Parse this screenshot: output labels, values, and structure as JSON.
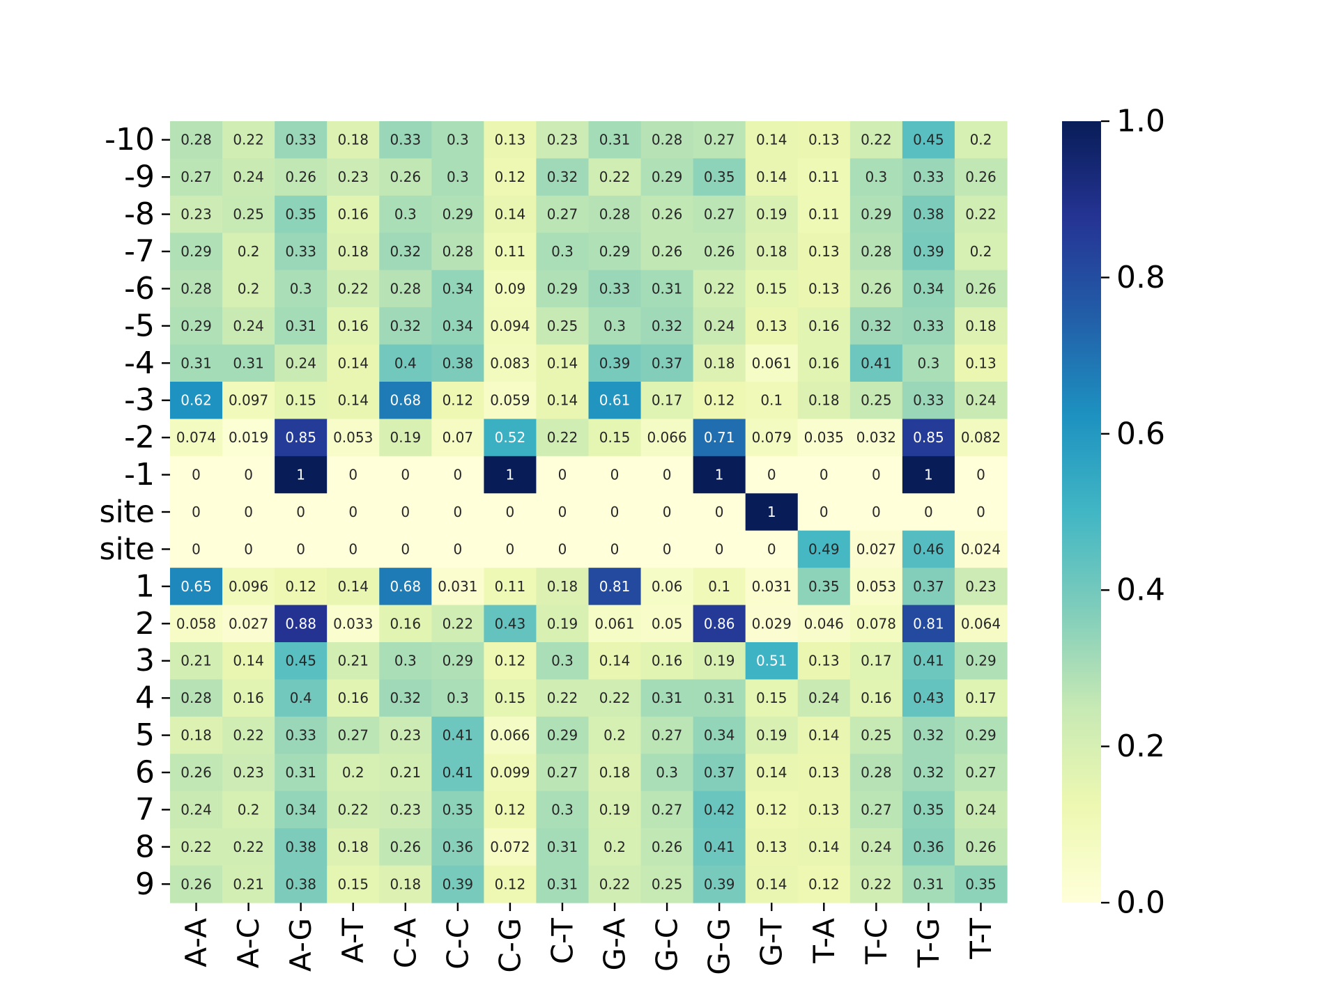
{
  "chart_data": {
    "type": "heatmap",
    "title": "",
    "xlabel": "",
    "ylabel": "",
    "colormap": "YlGnBu",
    "vmin": 0,
    "vmax": 1,
    "colorbar_ticks": [
      "0.0",
      "0.2",
      "0.4",
      "0.6",
      "0.8",
      "1.0"
    ],
    "x_categories": [
      "A-A",
      "A-C",
      "A-G",
      "A-T",
      "C-A",
      "C-C",
      "C-G",
      "C-T",
      "G-A",
      "G-C",
      "G-G",
      "G-T",
      "T-A",
      "T-C",
      "T-G",
      "T-T"
    ],
    "y_categories": [
      "-10",
      "-9",
      "-8",
      "-7",
      "-6",
      "-5",
      "-4",
      "-3",
      "-2",
      "-1",
      "site",
      "site",
      "1",
      "2",
      "3",
      "4",
      "5",
      "6",
      "7",
      "8",
      "9"
    ],
    "values": [
      [
        0.28,
        0.22,
        0.33,
        0.18,
        0.33,
        0.3,
        0.13,
        0.23,
        0.31,
        0.28,
        0.27,
        0.14,
        0.13,
        0.22,
        0.45,
        0.2
      ],
      [
        0.27,
        0.24,
        0.26,
        0.23,
        0.26,
        0.3,
        0.12,
        0.32,
        0.22,
        0.29,
        0.35,
        0.14,
        0.11,
        0.3,
        0.33,
        0.26
      ],
      [
        0.23,
        0.25,
        0.35,
        0.16,
        0.3,
        0.29,
        0.14,
        0.27,
        0.28,
        0.26,
        0.27,
        0.19,
        0.11,
        0.29,
        0.38,
        0.22
      ],
      [
        0.29,
        0.2,
        0.33,
        0.18,
        0.32,
        0.28,
        0.11,
        0.3,
        0.29,
        0.26,
        0.26,
        0.18,
        0.13,
        0.28,
        0.39,
        0.2
      ],
      [
        0.28,
        0.2,
        0.3,
        0.22,
        0.28,
        0.34,
        0.09,
        0.29,
        0.33,
        0.31,
        0.22,
        0.15,
        0.13,
        0.26,
        0.34,
        0.26
      ],
      [
        0.29,
        0.24,
        0.31,
        0.16,
        0.32,
        0.34,
        0.094,
        0.25,
        0.3,
        0.32,
        0.24,
        0.13,
        0.16,
        0.32,
        0.33,
        0.18
      ],
      [
        0.31,
        0.31,
        0.24,
        0.14,
        0.4,
        0.38,
        0.083,
        0.14,
        0.39,
        0.37,
        0.18,
        0.061,
        0.16,
        0.41,
        0.3,
        0.13
      ],
      [
        0.62,
        0.097,
        0.15,
        0.14,
        0.68,
        0.12,
        0.059,
        0.14,
        0.61,
        0.17,
        0.12,
        0.1,
        0.18,
        0.25,
        0.33,
        0.24
      ],
      [
        0.074,
        0.019,
        0.85,
        0.053,
        0.19,
        0.07,
        0.52,
        0.22,
        0.15,
        0.066,
        0.71,
        0.079,
        0.035,
        0.032,
        0.85,
        0.082
      ],
      [
        0,
        0,
        1,
        0,
        0,
        0,
        1,
        0,
        0,
        0,
        1,
        0,
        0,
        0,
        1,
        0
      ],
      [
        0,
        0,
        0,
        0,
        0,
        0,
        0,
        0,
        0,
        0,
        0,
        1,
        0,
        0,
        0,
        0
      ],
      [
        0,
        0,
        0,
        0,
        0,
        0,
        0,
        0,
        0,
        0,
        0,
        0,
        0.49,
        0.027,
        0.46,
        0.024
      ],
      [
        0.65,
        0.096,
        0.12,
        0.14,
        0.68,
        0.031,
        0.11,
        0.18,
        0.81,
        0.06,
        0.1,
        0.031,
        0.35,
        0.053,
        0.37,
        0.23
      ],
      [
        0.058,
        0.027,
        0.88,
        0.033,
        0.16,
        0.22,
        0.43,
        0.19,
        0.061,
        0.05,
        0.86,
        0.029,
        0.046,
        0.078,
        0.81,
        0.064
      ],
      [
        0.21,
        0.14,
        0.45,
        0.21,
        0.3,
        0.29,
        0.12,
        0.3,
        0.14,
        0.16,
        0.19,
        0.51,
        0.13,
        0.17,
        0.41,
        0.29
      ],
      [
        0.28,
        0.16,
        0.4,
        0.16,
        0.32,
        0.3,
        0.15,
        0.22,
        0.22,
        0.31,
        0.31,
        0.15,
        0.24,
        0.16,
        0.43,
        0.17
      ],
      [
        0.18,
        0.22,
        0.33,
        0.27,
        0.23,
        0.41,
        0.066,
        0.29,
        0.2,
        0.27,
        0.34,
        0.19,
        0.14,
        0.25,
        0.32,
        0.29
      ],
      [
        0.26,
        0.23,
        0.31,
        0.2,
        0.21,
        0.41,
        0.099,
        0.27,
        0.18,
        0.3,
        0.37,
        0.14,
        0.13,
        0.28,
        0.32,
        0.27
      ],
      [
        0.24,
        0.2,
        0.34,
        0.22,
        0.23,
        0.35,
        0.12,
        0.3,
        0.19,
        0.27,
        0.42,
        0.12,
        0.13,
        0.27,
        0.35,
        0.24
      ],
      [
        0.22,
        0.22,
        0.38,
        0.18,
        0.26,
        0.36,
        0.072,
        0.31,
        0.2,
        0.26,
        0.41,
        0.13,
        0.14,
        0.24,
        0.36,
        0.26
      ],
      [
        0.26,
        0.21,
        0.38,
        0.15,
        0.18,
        0.39,
        0.12,
        0.31,
        0.22,
        0.25,
        0.39,
        0.14,
        0.12,
        0.22,
        0.31,
        0.35
      ]
    ]
  }
}
